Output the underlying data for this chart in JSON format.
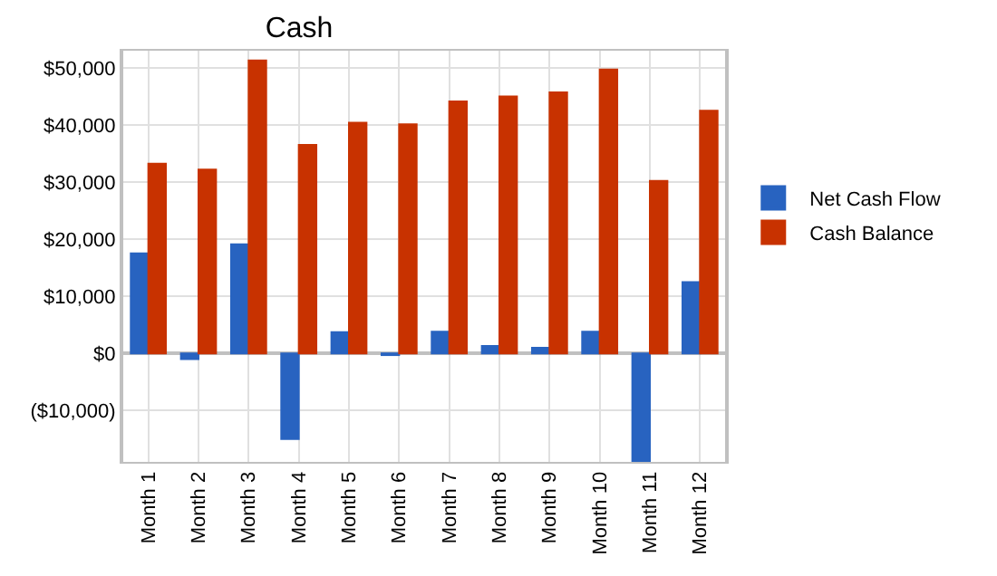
{
  "chart_data": {
    "type": "bar",
    "title": "Cash",
    "categories": [
      "Month 1",
      "Month 2",
      "Month 3",
      "Month 4",
      "Month 5",
      "Month 6",
      "Month 7",
      "Month 8",
      "Month 9",
      "Month 10",
      "Month 11",
      "Month 12"
    ],
    "series": [
      {
        "name": "Net Cash Flow",
        "color": "#2863c0",
        "values": [
          17500,
          -1000,
          19100,
          -15000,
          3700,
          -300,
          3800,
          1300,
          1000,
          3800,
          -19000,
          12500
        ]
      },
      {
        "name": "Cash Balance",
        "color": "#c83200",
        "values": [
          33200,
          32200,
          51300,
          36500,
          40400,
          40100,
          44100,
          45000,
          45700,
          49700,
          30200,
          42500
        ]
      }
    ],
    "ylim": [
      -19000,
      53000
    ],
    "yticks": [
      {
        "value": -10000,
        "label": "($10,000)"
      },
      {
        "value": 0,
        "label": "$0"
      },
      {
        "value": 10000,
        "label": "$10,000"
      },
      {
        "value": 20000,
        "label": "$20,000"
      },
      {
        "value": 30000,
        "label": "$30,000"
      },
      {
        "value": 40000,
        "label": "$40,000"
      },
      {
        "value": 50000,
        "label": "$50,000"
      }
    ],
    "grid": true,
    "legend": "right"
  }
}
